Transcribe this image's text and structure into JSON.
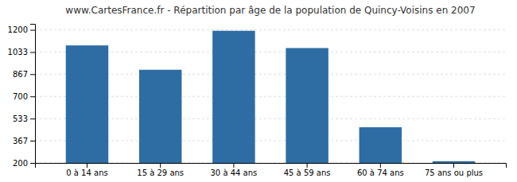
{
  "chart_data": {
    "type": "bar",
    "title": "www.CartesFrance.fr - Répartition par âge de la population de Quincy-Voisins en 2007",
    "categories": [
      "0 à 14 ans",
      "15 à 29 ans",
      "30 à 44 ans",
      "45 à 59 ans",
      "60 à 74 ans",
      "75 ans ou plus"
    ],
    "values": [
      1083,
      900,
      1193,
      1063,
      468,
      213
    ],
    "color": "#2e6da4",
    "ylim": [
      200,
      1245
    ],
    "yticks": [
      200,
      367,
      533,
      700,
      867,
      1033,
      1200
    ],
    "grid": true
  }
}
